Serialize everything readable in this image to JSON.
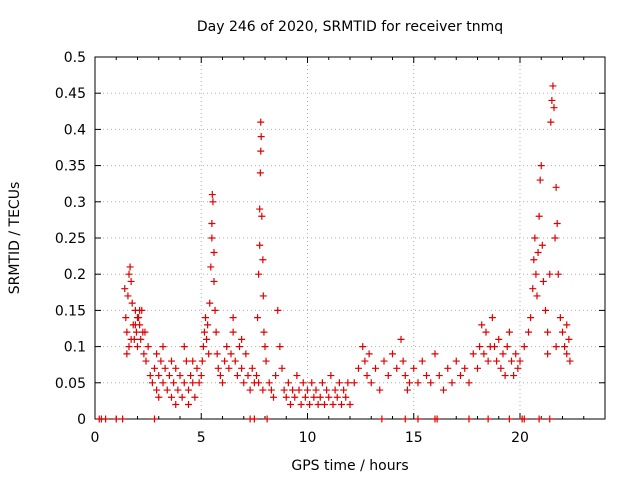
{
  "chart_data": {
    "type": "scatter",
    "title": "Day 246 of 2020, SRMTID for receiver tnmq",
    "xlabel": "GPS time / hours",
    "ylabel": "SRMTID / TECUs",
    "xlim": [
      0,
      24
    ],
    "ylim": [
      0,
      0.5
    ],
    "x_ticks": [
      0,
      5,
      10,
      15,
      20
    ],
    "x_tick_labels": [
      "0",
      "5",
      "10",
      "15",
      "20"
    ],
    "y_ticks": [
      0,
      0.05,
      0.1,
      0.15,
      0.2,
      0.25,
      0.3,
      0.35,
      0.4,
      0.45,
      0.5
    ],
    "y_tick_labels": [
      "0",
      "0.05",
      "0.1",
      "0.15",
      "0.2",
      "0.25",
      "0.3",
      "0.35",
      "0.4",
      "0.45",
      "0.5"
    ],
    "grid": true,
    "marker": "+",
    "color": "#e00000",
    "series": [
      {
        "name": "SRMTID",
        "points": [
          [
            0.2,
            0
          ],
          [
            0.3,
            0
          ],
          [
            0.5,
            0
          ],
          [
            1.0,
            0
          ],
          [
            1.3,
            0
          ],
          [
            2.8,
            0
          ],
          [
            7.3,
            0
          ],
          [
            7.5,
            0
          ],
          [
            8.1,
            0
          ],
          [
            13.5,
            0
          ],
          [
            14.6,
            0
          ],
          [
            15.2,
            0
          ],
          [
            16.0,
            0
          ],
          [
            16.1,
            0
          ],
          [
            17.6,
            0
          ],
          [
            18.5,
            0
          ],
          [
            19.5,
            0
          ],
          [
            20.1,
            0
          ],
          [
            20.2,
            0
          ],
          [
            20.9,
            0
          ],
          [
            21.4,
            0
          ],
          [
            1.4,
            0.18
          ],
          [
            1.45,
            0.14
          ],
          [
            1.5,
            0.12
          ],
          [
            1.55,
            0.17
          ],
          [
            1.6,
            0.2
          ],
          [
            1.65,
            0.21
          ],
          [
            1.7,
            0.19
          ],
          [
            1.75,
            0.16
          ],
          [
            1.8,
            0.13
          ],
          [
            1.85,
            0.11
          ],
          [
            1.9,
            0.15
          ],
          [
            1.95,
            0.12
          ],
          [
            2.0,
            0.1
          ],
          [
            2.05,
            0.14
          ],
          [
            2.1,
            0.13
          ],
          [
            2.15,
            0.11
          ],
          [
            2.2,
            0.15
          ],
          [
            2.25,
            0.12
          ],
          [
            2.3,
            0.09
          ],
          [
            2.35,
            0.12
          ],
          [
            2.4,
            0.08
          ],
          [
            2.5,
            0.1
          ],
          [
            1.5,
            0.09
          ],
          [
            1.6,
            0.1
          ],
          [
            1.7,
            0.11
          ],
          [
            1.9,
            0.13
          ],
          [
            2.0,
            0.14
          ],
          [
            2.1,
            0.15
          ],
          [
            2.6,
            0.06
          ],
          [
            2.7,
            0.05
          ],
          [
            2.8,
            0.07
          ],
          [
            2.9,
            0.04
          ],
          [
            3.0,
            0.06
          ],
          [
            3.1,
            0.08
          ],
          [
            3.2,
            0.05
          ],
          [
            3.3,
            0.07
          ],
          [
            3.4,
            0.04
          ],
          [
            3.5,
            0.06
          ],
          [
            3.6,
            0.03
          ],
          [
            3.7,
            0.05
          ],
          [
            3.8,
            0.07
          ],
          [
            3.9,
            0.04
          ],
          [
            4.0,
            0.06
          ],
          [
            4.1,
            0.03
          ],
          [
            4.2,
            0.05
          ],
          [
            4.3,
            0.08
          ],
          [
            4.4,
            0.04
          ],
          [
            4.5,
            0.06
          ],
          [
            4.6,
            0.05
          ],
          [
            4.7,
            0.03
          ],
          [
            4.8,
            0.07
          ],
          [
            4.9,
            0.05
          ],
          [
            2.9,
            0.09
          ],
          [
            3.2,
            0.1
          ],
          [
            3.6,
            0.08
          ],
          [
            4.2,
            0.1
          ],
          [
            4.6,
            0.08
          ],
          [
            3.0,
            0.03
          ],
          [
            3.8,
            0.02
          ],
          [
            4.4,
            0.02
          ],
          [
            5.0,
            0.06
          ],
          [
            5.05,
            0.08
          ],
          [
            5.1,
            0.1
          ],
          [
            5.15,
            0.12
          ],
          [
            5.2,
            0.14
          ],
          [
            5.25,
            0.11
          ],
          [
            5.3,
            0.13
          ],
          [
            5.35,
            0.09
          ],
          [
            5.4,
            0.16
          ],
          [
            5.45,
            0.21
          ],
          [
            5.5,
            0.25
          ],
          [
            5.5,
            0.27
          ],
          [
            5.52,
            0.31
          ],
          [
            5.55,
            0.3
          ],
          [
            5.6,
            0.23
          ],
          [
            5.6,
            0.19
          ],
          [
            5.65,
            0.15
          ],
          [
            5.7,
            0.12
          ],
          [
            5.75,
            0.09
          ],
          [
            5.8,
            0.07
          ],
          [
            5.9,
            0.06
          ],
          [
            6.0,
            0.05
          ],
          [
            6.1,
            0.08
          ],
          [
            6.2,
            0.1
          ],
          [
            6.3,
            0.07
          ],
          [
            6.4,
            0.09
          ],
          [
            6.5,
            0.12
          ],
          [
            6.6,
            0.08
          ],
          [
            6.7,
            0.06
          ],
          [
            6.8,
            0.1
          ],
          [
            6.9,
            0.07
          ],
          [
            7.0,
            0.05
          ],
          [
            7.1,
            0.09
          ],
          [
            7.2,
            0.06
          ],
          [
            7.3,
            0.04
          ],
          [
            7.4,
            0.07
          ],
          [
            7.5,
            0.05
          ],
          [
            6.5,
            0.14
          ],
          [
            6.9,
            0.11
          ],
          [
            7.6,
            0.06
          ],
          [
            7.65,
            0.14
          ],
          [
            7.7,
            0.2
          ],
          [
            7.75,
            0.24
          ],
          [
            7.75,
            0.29
          ],
          [
            7.78,
            0.34
          ],
          [
            7.8,
            0.37
          ],
          [
            7.8,
            0.41
          ],
          [
            7.82,
            0.39
          ],
          [
            7.85,
            0.28
          ],
          [
            7.9,
            0.22
          ],
          [
            7.92,
            0.17
          ],
          [
            7.95,
            0.12
          ],
          [
            8.0,
            0.1
          ],
          [
            8.05,
            0.08
          ],
          [
            7.7,
            0.05
          ],
          [
            7.9,
            0.04
          ],
          [
            8.2,
            0.05
          ],
          [
            8.3,
            0.04
          ],
          [
            8.4,
            0.03
          ],
          [
            8.5,
            0.06
          ],
          [
            8.6,
            0.15
          ],
          [
            8.7,
            0.1
          ],
          [
            8.8,
            0.07
          ],
          [
            8.9,
            0.04
          ],
          [
            9.0,
            0.03
          ],
          [
            9.1,
            0.05
          ],
          [
            9.2,
            0.02
          ],
          [
            9.3,
            0.04
          ],
          [
            9.4,
            0.03
          ],
          [
            9.5,
            0.06
          ],
          [
            9.6,
            0.04
          ],
          [
            9.7,
            0.02
          ],
          [
            9.8,
            0.05
          ],
          [
            9.9,
            0.03
          ],
          [
            10.0,
            0.04
          ],
          [
            10.1,
            0.02
          ],
          [
            10.2,
            0.05
          ],
          [
            10.3,
            0.03
          ],
          [
            10.4,
            0.04
          ],
          [
            10.5,
            0.02
          ],
          [
            10.6,
            0.03
          ],
          [
            10.7,
            0.05
          ],
          [
            10.8,
            0.02
          ],
          [
            10.9,
            0.04
          ],
          [
            11.0,
            0.03
          ],
          [
            11.1,
            0.06
          ],
          [
            11.2,
            0.02
          ],
          [
            11.3,
            0.04
          ],
          [
            11.4,
            0.03
          ],
          [
            11.5,
            0.05
          ],
          [
            11.6,
            0.02
          ],
          [
            11.7,
            0.04
          ],
          [
            11.8,
            0.03
          ],
          [
            11.9,
            0.05
          ],
          [
            12.0,
            0.02
          ],
          [
            12.2,
            0.05
          ],
          [
            12.4,
            0.07
          ],
          [
            12.6,
            0.1
          ],
          [
            12.7,
            0.08
          ],
          [
            12.8,
            0.06
          ],
          [
            12.9,
            0.09
          ],
          [
            13.0,
            0.05
          ],
          [
            13.2,
            0.07
          ],
          [
            13.4,
            0.04
          ],
          [
            13.6,
            0.08
          ],
          [
            13.8,
            0.06
          ],
          [
            14.0,
            0.09
          ],
          [
            14.2,
            0.07
          ],
          [
            14.4,
            0.11
          ],
          [
            14.5,
            0.08
          ],
          [
            14.6,
            0.06
          ],
          [
            14.7,
            0.04
          ],
          [
            14.8,
            0.05
          ],
          [
            15.0,
            0.07
          ],
          [
            15.2,
            0.05
          ],
          [
            15.4,
            0.08
          ],
          [
            15.6,
            0.06
          ],
          [
            15.8,
            0.05
          ],
          [
            16.0,
            0.09
          ],
          [
            16.2,
            0.06
          ],
          [
            16.4,
            0.04
          ],
          [
            16.6,
            0.07
          ],
          [
            16.8,
            0.05
          ],
          [
            17.0,
            0.08
          ],
          [
            17.2,
            0.06
          ],
          [
            17.4,
            0.07
          ],
          [
            17.6,
            0.05
          ],
          [
            17.8,
            0.09
          ],
          [
            18.0,
            0.07
          ],
          [
            18.1,
            0.1
          ],
          [
            18.2,
            0.13
          ],
          [
            18.3,
            0.09
          ],
          [
            18.4,
            0.12
          ],
          [
            18.5,
            0.08
          ],
          [
            18.6,
            0.1
          ],
          [
            18.7,
            0.14
          ],
          [
            18.8,
            0.1
          ],
          [
            18.9,
            0.08
          ],
          [
            19.0,
            0.11
          ],
          [
            19.1,
            0.07
          ],
          [
            19.2,
            0.09
          ],
          [
            19.3,
            0.06
          ],
          [
            19.4,
            0.1
          ],
          [
            19.5,
            0.12
          ],
          [
            19.6,
            0.08
          ],
          [
            19.7,
            0.06
          ],
          [
            19.8,
            0.09
          ],
          [
            19.9,
            0.07
          ],
          [
            20.0,
            0.08
          ],
          [
            20.2,
            0.1
          ],
          [
            20.4,
            0.12
          ],
          [
            20.5,
            0.14
          ],
          [
            20.6,
            0.18
          ],
          [
            20.65,
            0.22
          ],
          [
            20.7,
            0.25
          ],
          [
            20.75,
            0.2
          ],
          [
            20.8,
            0.17
          ],
          [
            20.85,
            0.23
          ],
          [
            20.9,
            0.28
          ],
          [
            20.95,
            0.33
          ],
          [
            21.0,
            0.35
          ],
          [
            21.05,
            0.24
          ],
          [
            21.1,
            0.19
          ],
          [
            21.2,
            0.15
          ],
          [
            21.3,
            0.12
          ],
          [
            21.4,
            0.2
          ],
          [
            21.45,
            0.41
          ],
          [
            21.5,
            0.44
          ],
          [
            21.55,
            0.46
          ],
          [
            21.6,
            0.43
          ],
          [
            21.65,
            0.25
          ],
          [
            21.7,
            0.32
          ],
          [
            21.75,
            0.27
          ],
          [
            21.8,
            0.2
          ],
          [
            21.9,
            0.14
          ],
          [
            22.0,
            0.12
          ],
          [
            22.1,
            0.1
          ],
          [
            22.2,
            0.09
          ],
          [
            22.3,
            0.11
          ],
          [
            22.35,
            0.08
          ],
          [
            21.3,
            0.09
          ],
          [
            21.7,
            0.1
          ],
          [
            22.2,
            0.13
          ]
        ]
      }
    ]
  }
}
